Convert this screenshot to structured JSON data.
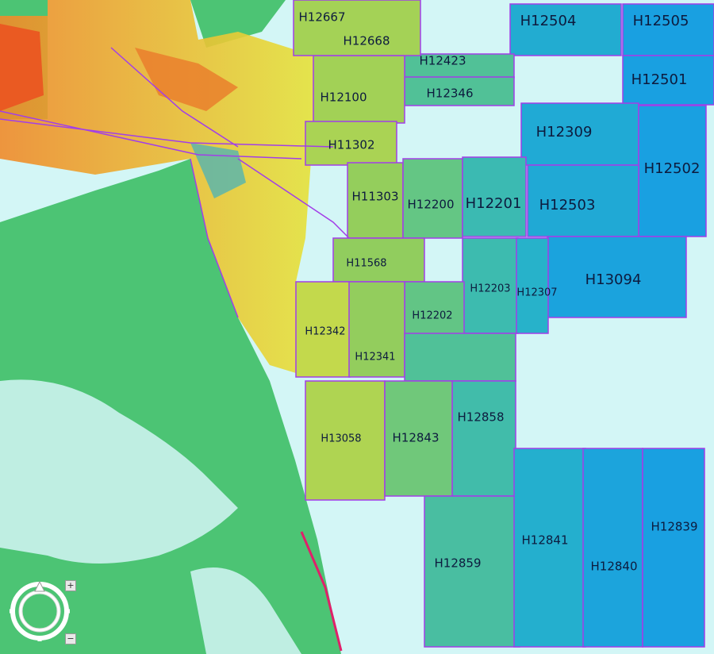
{
  "map": {
    "colors": {
      "water": "#d3f6f6",
      "land": "#4cc474",
      "boundary": "#a23ee8",
      "shoal": "#e6e23a",
      "deep": "#1fa2dc",
      "mid": "#66c98a",
      "high": "#e8502a"
    },
    "survey_labels": [
      "H12667",
      "H12668",
      "H12504",
      "H12505",
      "H12423",
      "H12346",
      "H12100",
      "H12501",
      "H12309",
      "H11302",
      "H12502",
      "H11303",
      "H12200",
      "H12201",
      "H12503",
      "H11568",
      "H13094",
      "H12203",
      "H12307",
      "H12202",
      "H12342",
      "H12341",
      "H12858",
      "H13058",
      "H12843",
      "H12839",
      "H12841",
      "H12859",
      "H12840"
    ]
  },
  "navigation": {
    "zoom_in": "+",
    "zoom_out": "−",
    "icons": [
      "compass-ring-icon",
      "north-arrow-icon"
    ]
  }
}
